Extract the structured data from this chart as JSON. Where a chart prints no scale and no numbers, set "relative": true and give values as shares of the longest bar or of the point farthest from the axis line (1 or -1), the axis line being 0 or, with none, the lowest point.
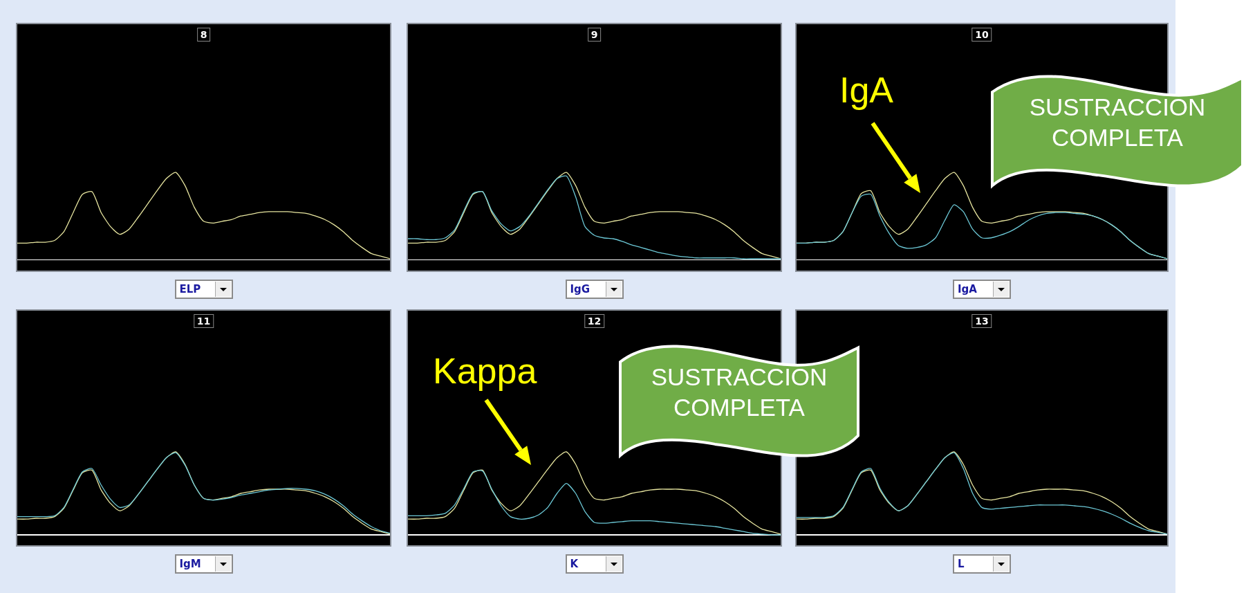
{
  "chart_data": [
    {
      "type": "line",
      "title": "8",
      "xlabel": "ELP",
      "relative": true,
      "grid": false,
      "marker": "none",
      "line_style": "solid",
      "categories": [
        null,
        null,
        null,
        null,
        null,
        null,
        null,
        null,
        null,
        null,
        null,
        null,
        null,
        null,
        null,
        null,
        null,
        null,
        null,
        null,
        null,
        null,
        null,
        null,
        null,
        null,
        null,
        null,
        null,
        null,
        null,
        null,
        null,
        null,
        null,
        null,
        null,
        null,
        null,
        null,
        null
      ],
      "series": [
        {
          "color": "#e8e6a0",
          "values": [
            0.19,
            0.19,
            0.2,
            0.2,
            0.22,
            0.32,
            0.54,
            0.75,
            0.78,
            0.54,
            0.38,
            0.29,
            0.35,
            0.49,
            0.64,
            0.79,
            0.93,
            1.0,
            0.85,
            0.6,
            0.44,
            0.42,
            0.44,
            0.46,
            0.5,
            0.52,
            0.54,
            0.55,
            0.55,
            0.55,
            0.54,
            0.53,
            0.5,
            0.46,
            0.4,
            0.32,
            0.22,
            0.14,
            0.07,
            0.04,
            0.01
          ]
        }
      ]
    },
    {
      "type": "line",
      "title": "9",
      "xlabel": "IgG",
      "relative": true,
      "grid": false,
      "marker": "none",
      "line_style": "solid",
      "categories": [
        null,
        null,
        null,
        null,
        null,
        null,
        null,
        null,
        null,
        null,
        null,
        null,
        null,
        null,
        null,
        null,
        null,
        null,
        null,
        null,
        null,
        null,
        null,
        null,
        null,
        null,
        null,
        null,
        null,
        null,
        null,
        null,
        null,
        null,
        null,
        null,
        null,
        null,
        null,
        null,
        null
      ],
      "series": [
        {
          "color": "#e8e6a0",
          "values": [
            0.19,
            0.19,
            0.2,
            0.2,
            0.22,
            0.32,
            0.54,
            0.75,
            0.78,
            0.54,
            0.38,
            0.29,
            0.35,
            0.49,
            0.64,
            0.79,
            0.93,
            1.0,
            0.85,
            0.6,
            0.44,
            0.42,
            0.44,
            0.46,
            0.5,
            0.52,
            0.54,
            0.55,
            0.55,
            0.55,
            0.54,
            0.53,
            0.5,
            0.46,
            0.4,
            0.32,
            0.22,
            0.14,
            0.07,
            0.04,
            0.01
          ]
        },
        {
          "color": "#6cc8d6",
          "values": [
            0.24,
            0.24,
            0.23,
            0.23,
            0.25,
            0.34,
            0.56,
            0.76,
            0.78,
            0.56,
            0.41,
            0.33,
            0.38,
            0.5,
            0.65,
            0.8,
            0.93,
            0.96,
            0.72,
            0.38,
            0.28,
            0.25,
            0.24,
            0.21,
            0.17,
            0.14,
            0.11,
            0.08,
            0.06,
            0.04,
            0.03,
            0.02,
            0.02,
            0.02,
            0.02,
            0.02,
            0.01,
            0.01,
            0.01,
            0.01,
            0.01
          ]
        }
      ]
    },
    {
      "type": "line",
      "title": "10",
      "xlabel": "IgA",
      "relative": true,
      "grid": false,
      "marker": "none",
      "line_style": "solid",
      "annotations": [
        "IgA",
        "SUSTRACCION COMPLETA"
      ],
      "categories": [
        null,
        null,
        null,
        null,
        null,
        null,
        null,
        null,
        null,
        null,
        null,
        null,
        null,
        null,
        null,
        null,
        null,
        null,
        null,
        null,
        null,
        null,
        null,
        null,
        null,
        null,
        null,
        null,
        null,
        null,
        null,
        null,
        null,
        null,
        null,
        null,
        null,
        null,
        null,
        null,
        null
      ],
      "series": [
        {
          "color": "#e8e6a0",
          "values": [
            0.19,
            0.19,
            0.2,
            0.2,
            0.22,
            0.32,
            0.54,
            0.76,
            0.79,
            0.54,
            0.38,
            0.29,
            0.35,
            0.49,
            0.64,
            0.79,
            0.93,
            1.0,
            0.85,
            0.6,
            0.44,
            0.42,
            0.44,
            0.46,
            0.5,
            0.52,
            0.54,
            0.55,
            0.55,
            0.55,
            0.54,
            0.53,
            0.5,
            0.46,
            0.4,
            0.32,
            0.22,
            0.14,
            0.07,
            0.04,
            0.01
          ]
        },
        {
          "color": "#6cc8d6",
          "values": [
            0.19,
            0.19,
            0.2,
            0.2,
            0.22,
            0.32,
            0.54,
            0.73,
            0.75,
            0.5,
            0.3,
            0.16,
            0.13,
            0.14,
            0.17,
            0.25,
            0.45,
            0.63,
            0.55,
            0.35,
            0.25,
            0.25,
            0.28,
            0.32,
            0.38,
            0.45,
            0.5,
            0.53,
            0.54,
            0.54,
            0.53,
            0.52,
            0.5,
            0.46,
            0.4,
            0.32,
            0.22,
            0.14,
            0.07,
            0.04,
            0.01
          ]
        }
      ]
    },
    {
      "type": "line",
      "title": "11",
      "xlabel": "IgM",
      "relative": true,
      "grid": false,
      "marker": "none",
      "line_style": "solid",
      "categories": [
        null,
        null,
        null,
        null,
        null,
        null,
        null,
        null,
        null,
        null,
        null,
        null,
        null,
        null,
        null,
        null,
        null,
        null,
        null,
        null,
        null,
        null,
        null,
        null,
        null,
        null,
        null,
        null,
        null,
        null,
        null,
        null,
        null,
        null,
        null,
        null,
        null,
        null,
        null,
        null,
        null
      ],
      "series": [
        {
          "color": "#e8e6a0",
          "values": [
            0.19,
            0.19,
            0.2,
            0.2,
            0.22,
            0.32,
            0.54,
            0.75,
            0.78,
            0.54,
            0.38,
            0.29,
            0.35,
            0.49,
            0.64,
            0.79,
            0.93,
            1.0,
            0.85,
            0.6,
            0.44,
            0.42,
            0.44,
            0.46,
            0.5,
            0.52,
            0.54,
            0.55,
            0.55,
            0.55,
            0.54,
            0.53,
            0.5,
            0.46,
            0.4,
            0.32,
            0.22,
            0.14,
            0.07,
            0.04,
            0.01
          ]
        },
        {
          "color": "#6cc8d6",
          "values": [
            0.22,
            0.22,
            0.22,
            0.22,
            0.23,
            0.33,
            0.55,
            0.76,
            0.8,
            0.6,
            0.43,
            0.33,
            0.36,
            0.49,
            0.64,
            0.79,
            0.93,
            0.99,
            0.84,
            0.6,
            0.44,
            0.42,
            0.43,
            0.45,
            0.48,
            0.5,
            0.52,
            0.54,
            0.55,
            0.56,
            0.56,
            0.55,
            0.53,
            0.49,
            0.43,
            0.35,
            0.25,
            0.17,
            0.1,
            0.05,
            0.02
          ]
        }
      ]
    },
    {
      "type": "line",
      "title": "12",
      "xlabel": "K",
      "relative": true,
      "grid": false,
      "marker": "none",
      "line_style": "solid",
      "annotations": [
        "Kappa",
        "SUSTRACCION COMPLETA"
      ],
      "categories": [
        null,
        null,
        null,
        null,
        null,
        null,
        null,
        null,
        null,
        null,
        null,
        null,
        null,
        null,
        null,
        null,
        null,
        null,
        null,
        null,
        null,
        null,
        null,
        null,
        null,
        null,
        null,
        null,
        null,
        null,
        null,
        null,
        null,
        null,
        null,
        null,
        null,
        null,
        null,
        null,
        null
      ],
      "series": [
        {
          "color": "#e8e6a0",
          "values": [
            0.19,
            0.19,
            0.2,
            0.2,
            0.22,
            0.32,
            0.54,
            0.75,
            0.78,
            0.54,
            0.38,
            0.29,
            0.35,
            0.49,
            0.64,
            0.79,
            0.93,
            1.0,
            0.85,
            0.6,
            0.44,
            0.42,
            0.44,
            0.46,
            0.5,
            0.52,
            0.54,
            0.55,
            0.55,
            0.55,
            0.54,
            0.53,
            0.5,
            0.46,
            0.4,
            0.32,
            0.22,
            0.14,
            0.07,
            0.04,
            0.01
          ]
        },
        {
          "color": "#6cc8d6",
          "values": [
            0.23,
            0.23,
            0.23,
            0.24,
            0.26,
            0.36,
            0.56,
            0.76,
            0.77,
            0.55,
            0.35,
            0.22,
            0.19,
            0.2,
            0.24,
            0.33,
            0.5,
            0.62,
            0.5,
            0.28,
            0.15,
            0.14,
            0.15,
            0.16,
            0.17,
            0.17,
            0.17,
            0.16,
            0.15,
            0.14,
            0.13,
            0.12,
            0.11,
            0.1,
            0.08,
            0.06,
            0.04,
            0.02,
            0.01,
            0.0,
            0.0
          ]
        }
      ]
    },
    {
      "type": "line",
      "title": "13",
      "xlabel": "L",
      "relative": true,
      "grid": false,
      "marker": "none",
      "line_style": "solid",
      "categories": [
        null,
        null,
        null,
        null,
        null,
        null,
        null,
        null,
        null,
        null,
        null,
        null,
        null,
        null,
        null,
        null,
        null,
        null,
        null,
        null,
        null,
        null,
        null,
        null,
        null,
        null,
        null,
        null,
        null,
        null,
        null,
        null,
        null,
        null,
        null,
        null,
        null,
        null,
        null,
        null,
        null
      ],
      "series": [
        {
          "color": "#e8e6a0",
          "values": [
            0.19,
            0.19,
            0.2,
            0.2,
            0.22,
            0.32,
            0.54,
            0.75,
            0.78,
            0.54,
            0.38,
            0.29,
            0.35,
            0.49,
            0.64,
            0.79,
            0.93,
            1.0,
            0.85,
            0.6,
            0.44,
            0.42,
            0.44,
            0.46,
            0.5,
            0.52,
            0.54,
            0.55,
            0.55,
            0.55,
            0.54,
            0.53,
            0.5,
            0.46,
            0.4,
            0.32,
            0.22,
            0.14,
            0.07,
            0.04,
            0.01
          ]
        },
        {
          "color": "#6cc8d6",
          "values": [
            0.21,
            0.21,
            0.21,
            0.21,
            0.23,
            0.33,
            0.55,
            0.76,
            0.8,
            0.56,
            0.39,
            0.29,
            0.35,
            0.49,
            0.64,
            0.79,
            0.93,
            0.99,
            0.8,
            0.5,
            0.33,
            0.31,
            0.32,
            0.33,
            0.34,
            0.35,
            0.36,
            0.36,
            0.36,
            0.36,
            0.35,
            0.34,
            0.32,
            0.29,
            0.25,
            0.2,
            0.14,
            0.09,
            0.05,
            0.03,
            0.01
          ]
        }
      ]
    }
  ]
}
